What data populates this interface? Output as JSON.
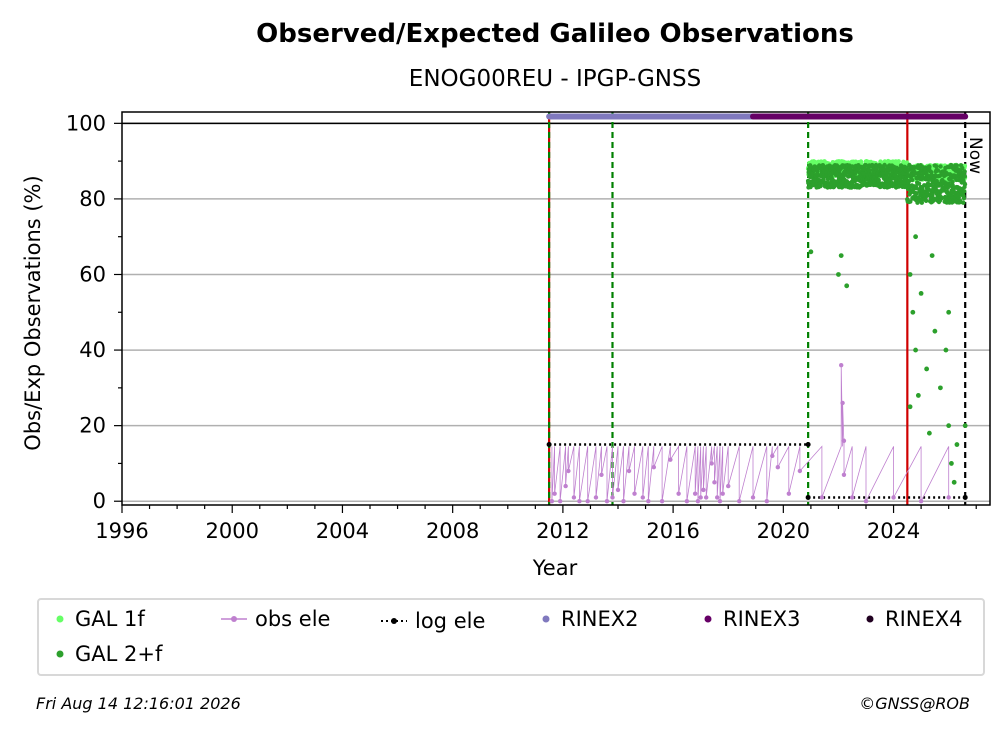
{
  "chart_data": {
    "type": "scatter",
    "title": "Observed/Expected Galileo Observations",
    "subtitle": "ENOG00REU - IPGP-GNSS",
    "xlabel": "Year",
    "ylabel": "Obs/Exp Observations (%)",
    "xlim": [
      1996,
      2027.5
    ],
    "ylim": [
      -1,
      103
    ],
    "x_ticks": [
      1996,
      2000,
      2004,
      2008,
      2012,
      2016,
      2020,
      2024
    ],
    "y_ticks": [
      0,
      20,
      40,
      60,
      80,
      100
    ],
    "grid": "horizontal",
    "now_label": "Now",
    "now_x": 2026.6,
    "vertical_lines": [
      {
        "x": 2011.5,
        "color": "#d00000",
        "style": "solid"
      },
      {
        "x": 2011.5,
        "color": "#008000",
        "style": "dashed"
      },
      {
        "x": 2013.8,
        "color": "#008000",
        "style": "dashed"
      },
      {
        "x": 2020.9,
        "color": "#008000",
        "style": "dashed"
      },
      {
        "x": 2024.5,
        "color": "#d00000",
        "style": "solid"
      },
      {
        "x": 2026.6,
        "color": "#000000",
        "style": "dashed"
      }
    ],
    "rinex_bars": [
      {
        "name": "RINEX2",
        "from": 2011.5,
        "to": 2018.9,
        "y": 101.8,
        "color": "#8079be"
      },
      {
        "name": "RINEX3",
        "from": 2018.9,
        "to": 2026.6,
        "y": 101.8,
        "color": "#660066"
      }
    ],
    "log_ele": [
      {
        "from": 2011.5,
        "to": 2020.9,
        "y": 15
      },
      {
        "from": 2020.9,
        "to": 2026.6,
        "y": 1
      }
    ],
    "series": [
      {
        "name": "GAL 1f",
        "color": "#66ff66",
        "segments": [
          {
            "from": 2020.9,
            "to": 2024.5,
            "mean": 88,
            "spread": 2
          },
          {
            "from": 2024.5,
            "to": 2026.6,
            "mean": 87,
            "spread": 2
          }
        ]
      },
      {
        "name": "GAL 2+f",
        "color": "#2ca02c",
        "segments": [
          {
            "from": 2020.9,
            "to": 2024.5,
            "mean": 86,
            "spread": 3
          },
          {
            "from": 2024.5,
            "to": 2026.6,
            "mean": 84,
            "spread": 5
          }
        ],
        "outliers": [
          [
            2021.0,
            66
          ],
          [
            2022.1,
            65
          ],
          [
            2022.3,
            57
          ],
          [
            2022.0,
            60
          ],
          [
            2024.6,
            60
          ],
          [
            2024.7,
            50
          ],
          [
            2024.8,
            40
          ],
          [
            2024.9,
            28
          ],
          [
            2024.6,
            25
          ],
          [
            2025.0,
            55
          ],
          [
            2025.2,
            35
          ],
          [
            2025.3,
            18
          ],
          [
            2025.5,
            45
          ],
          [
            2025.7,
            30
          ],
          [
            2025.9,
            40
          ],
          [
            2026.0,
            20
          ],
          [
            2026.1,
            10
          ],
          [
            2026.2,
            5
          ],
          [
            2026.3,
            15
          ],
          [
            2026.0,
            50
          ],
          [
            2025.4,
            65
          ],
          [
            2024.8,
            70
          ],
          [
            2026.6,
            20
          ]
        ]
      },
      {
        "name": "obs ele",
        "color": "#bf80cf",
        "points": [
          [
            2011.6,
            0
          ],
          [
            2011.7,
            2
          ],
          [
            2011.9,
            0
          ],
          [
            2012.1,
            4
          ],
          [
            2012.2,
            8
          ],
          [
            2012.4,
            1
          ],
          [
            2012.6,
            0
          ],
          [
            2012.9,
            0
          ],
          [
            2013.2,
            1
          ],
          [
            2013.4,
            7
          ],
          [
            2013.6,
            0
          ],
          [
            2013.8,
            1
          ],
          [
            2014.0,
            3
          ],
          [
            2014.2,
            0
          ],
          [
            2014.4,
            8
          ],
          [
            2014.6,
            2
          ],
          [
            2014.9,
            1
          ],
          [
            2015.1,
            0
          ],
          [
            2015.3,
            9
          ],
          [
            2015.6,
            0
          ],
          [
            2015.9,
            11
          ],
          [
            2016.2,
            2
          ],
          [
            2016.5,
            0
          ],
          [
            2016.8,
            2
          ],
          [
            2016.9,
            0
          ],
          [
            2017.0,
            1
          ],
          [
            2017.1,
            3
          ],
          [
            2017.2,
            1
          ],
          [
            2017.4,
            10
          ],
          [
            2017.5,
            5
          ],
          [
            2017.6,
            1
          ],
          [
            2017.7,
            0
          ],
          [
            2017.8,
            2
          ],
          [
            2018.0,
            4
          ],
          [
            2018.4,
            0
          ],
          [
            2018.9,
            1
          ],
          [
            2019.4,
            0
          ],
          [
            2019.6,
            12
          ],
          [
            2019.8,
            9
          ],
          [
            2020.2,
            2
          ],
          [
            2020.6,
            8
          ],
          [
            2021.4,
            1
          ],
          [
            2022.1,
            36
          ],
          [
            2022.15,
            26
          ],
          [
            2022.2,
            16
          ],
          [
            2022.2,
            7
          ],
          [
            2022.5,
            1
          ],
          [
            2023.0,
            0
          ],
          [
            2024.0,
            1
          ],
          [
            2025.0,
            0
          ],
          [
            2026.0,
            1
          ]
        ]
      }
    ],
    "legend": {
      "placement": "below",
      "entries": [
        "GAL 1f",
        "obs ele",
        "log ele",
        "RINEX2",
        "RINEX3",
        "RINEX4",
        "GAL 2+f"
      ]
    }
  },
  "colors": {
    "gal1f": "#66ff66",
    "gal2f": "#2ca02c",
    "obs_ele": "#bf80cf",
    "log_ele": "#000000",
    "rinex2": "#8079be",
    "rinex3": "#660066",
    "rinex4": "#200020"
  },
  "footer": {
    "timestamp": "Fri Aug 14 12:16:01 2026",
    "credit": "©GNSS@ROB"
  }
}
